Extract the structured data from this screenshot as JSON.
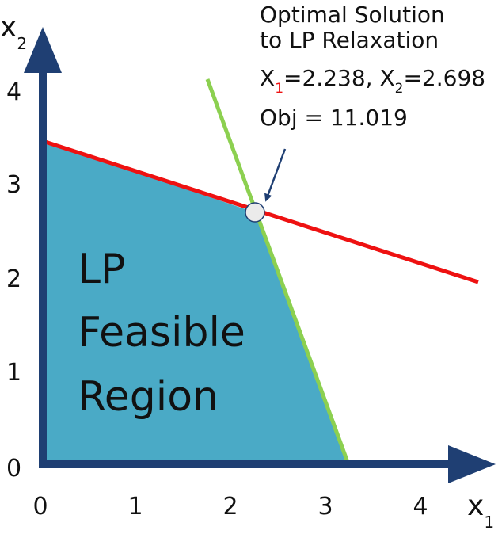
{
  "axes": {
    "x_label": "x",
    "x_label_sub": "1",
    "y_label": "x",
    "y_label_sub": "2",
    "x_ticks": [
      "0",
      "1",
      "2",
      "3",
      "4"
    ],
    "y_ticks": [
      "0",
      "1",
      "2",
      "3",
      "4"
    ]
  },
  "region": {
    "line1": "LP",
    "line2": "Feasible",
    "line3": "Region",
    "fill_color": "#4aaac6"
  },
  "constraints": {
    "red_color": "#ee1111",
    "green_color": "#8cd050"
  },
  "callout": {
    "title_line1": "Optimal Solution",
    "title_line2": "to LP Relaxation",
    "x1_prefix": "X",
    "x1_sub": "1",
    "x1_value": "=2.238",
    "separator": ", ",
    "x2_prefix": "X",
    "x2_sub": "2",
    "x2_value": "=2.698",
    "objective": "Obj = 11.019",
    "highlight_color": "#ee1111"
  },
  "axis_color": "#1f3f73"
}
